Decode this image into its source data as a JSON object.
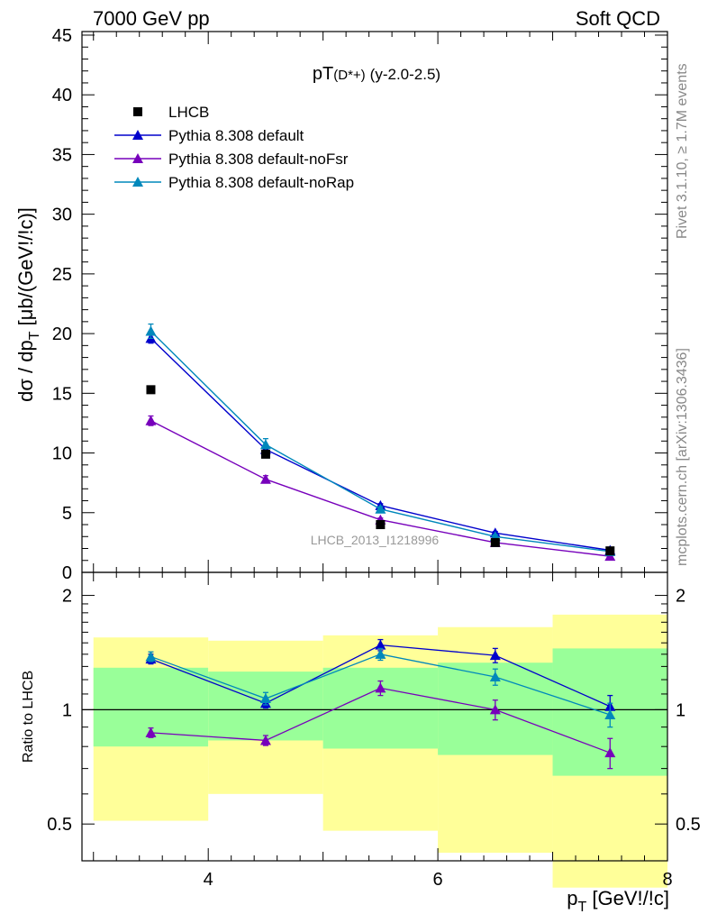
{
  "header": {
    "left": "7000 GeV pp",
    "right": "Soft QCD"
  },
  "side_labels": {
    "rivet": "Rivet 3.1.10, ≥ 1.7M events",
    "mcplots": "mcplots.cern.ch [arXiv:1306.3436]"
  },
  "chart_data": [
    {
      "type": "scatter",
      "panel": "main",
      "title_main": "pT",
      "title_sub": "(D*+)",
      "title_tail": "(y-2.0-2.5)",
      "ylabel": "dσ / dp_T [μb/(GeV!/!c)]",
      "ylabel_main": "dσ / dp",
      "ylabel_sub": "T",
      "ylabel_tail": " [μb/(GeV!/!c)]",
      "xlabel": "p_T [GeV!/!c]",
      "xlabel_main": "p",
      "xlabel_sub": "T",
      "xlabel_tail": " [GeV!/!c]",
      "watermark": "LHCB_2013_I1218996",
      "xlim": [
        2.9,
        8.0
      ],
      "ylim": [
        0,
        45.3
      ],
      "y_ticks": [
        0,
        5,
        10,
        15,
        20,
        25,
        30,
        35,
        40,
        45
      ],
      "y_tick_labels": [
        "0",
        "5",
        "10",
        "15",
        "20",
        "25",
        "30",
        "35",
        "40",
        "45"
      ],
      "legend_position": "top-left",
      "legend": [
        "LHCB",
        "Pythia 8.308 default",
        "Pythia 8.308 default-noFsr",
        "Pythia 8.308 default-noRap"
      ],
      "x": [
        3.5,
        4.5,
        5.5,
        6.5,
        7.5
      ],
      "data": {
        "name": "LHCB",
        "color": "#000000",
        "values": [
          15.3,
          9.9,
          4.0,
          2.5,
          1.8
        ]
      },
      "series": [
        {
          "name": "Pythia 8.308 default",
          "color": "#0000cc",
          "values": [
            19.6,
            10.3,
            5.6,
            3.3,
            1.85
          ],
          "errors": [
            0.4,
            0.3,
            0.15,
            0.12,
            0.1
          ]
        },
        {
          "name": "Pythia 8.308 default-noFsr",
          "color": "#7700bb",
          "values": [
            12.7,
            7.8,
            4.4,
            2.5,
            1.35
          ],
          "errors": [
            0.4,
            0.3,
            0.15,
            0.12,
            0.1
          ]
        },
        {
          "name": "Pythia 8.308 default-noRap",
          "color": "#0088bb",
          "values": [
            20.2,
            10.7,
            5.3,
            3.0,
            1.75
          ],
          "errors": [
            0.6,
            0.5,
            0.2,
            0.15,
            0.1
          ]
        }
      ]
    },
    {
      "type": "scatter",
      "panel": "ratio",
      "ylabel": "Ratio to LHCB",
      "xlim": [
        2.9,
        8.0
      ],
      "ylim": [
        0.4,
        2.3
      ],
      "y_scale": "log",
      "y_ticks": [
        0.5,
        1,
        2
      ],
      "y_tick_labels": [
        "0.5",
        "1",
        "2"
      ],
      "x_ticks": [
        4,
        6,
        8
      ],
      "x_tick_labels": [
        "4",
        "6",
        "8"
      ],
      "reference": 1,
      "bins": [
        [
          3,
          4
        ],
        [
          4,
          5
        ],
        [
          5,
          6
        ],
        [
          6,
          7
        ],
        [
          7,
          8
        ]
      ],
      "band_inner": {
        "color": "#99ff99",
        "lo": [
          0.8,
          0.83,
          0.79,
          0.76,
          0.67
        ],
        "hi": [
          1.29,
          1.26,
          1.29,
          1.33,
          1.45
        ]
      },
      "band_outer": {
        "color": "#ffff99",
        "lo": [
          0.51,
          0.6,
          0.48,
          0.42,
          0.34
        ],
        "hi": [
          1.55,
          1.52,
          1.57,
          1.65,
          1.78
        ]
      },
      "x": [
        3.5,
        4.5,
        5.5,
        6.5,
        7.5
      ],
      "series": [
        {
          "name": "Pythia 8.308 default",
          "color": "#0000cc",
          "values": [
            1.36,
            1.04,
            1.48,
            1.39,
            1.02
          ],
          "errors": [
            0.04,
            0.03,
            0.05,
            0.06,
            0.07
          ]
        },
        {
          "name": "Pythia 8.308 default-noFsr",
          "color": "#7700bb",
          "values": [
            0.87,
            0.83,
            1.14,
            1.0,
            0.77
          ],
          "errors": [
            0.025,
            0.025,
            0.05,
            0.06,
            0.07
          ]
        },
        {
          "name": "Pythia 8.308 default-noRap",
          "color": "#0088bb",
          "values": [
            1.38,
            1.07,
            1.4,
            1.22,
            0.97
          ],
          "errors": [
            0.04,
            0.04,
            0.05,
            0.06,
            0.07
          ]
        }
      ]
    }
  ]
}
